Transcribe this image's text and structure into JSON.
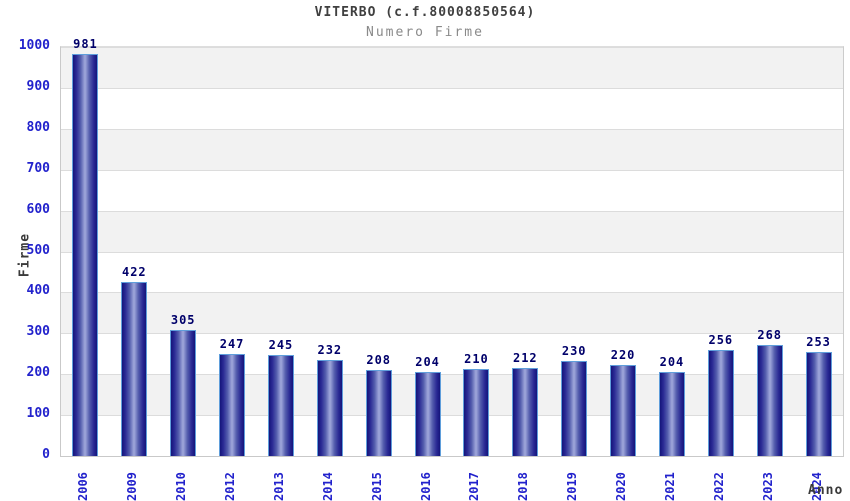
{
  "chart_data": {
    "type": "bar",
    "title": "VITERBO (c.f.80008850564)",
    "subtitle": "Numero Firme",
    "xlabel": "Anno",
    "ylabel": "Firme",
    "categories": [
      "2006",
      "2009",
      "2010",
      "2012",
      "2013",
      "2014",
      "2015",
      "2016",
      "2017",
      "2018",
      "2019",
      "2020",
      "2021",
      "2022",
      "2023",
      "2024"
    ],
    "values": [
      981,
      422,
      305,
      247,
      245,
      232,
      208,
      204,
      210,
      212,
      230,
      220,
      204,
      256,
      268,
      253
    ],
    "ylim": [
      0,
      1000
    ],
    "yticks": [
      0,
      100,
      200,
      300,
      400,
      500,
      600,
      700,
      800,
      900,
      1000
    ],
    "grid": "horizontal gridlines every 100 with alternating white/gray bands",
    "legend_position": "none",
    "colors": {
      "tick_text": "#2222cc",
      "value_label_text": "#00006a",
      "title_text": "#404040",
      "subtitle_text": "#8a8a8a",
      "axis_label_text": "#3a3a3a",
      "band_gray": "#f2f2f2",
      "band_white": "#ffffff",
      "gridline": "#dcdcdc",
      "bar_edge_dark": "#15157b",
      "bar_center_light": "#9aa2d8",
      "bar_border": "#5f9edb"
    }
  }
}
